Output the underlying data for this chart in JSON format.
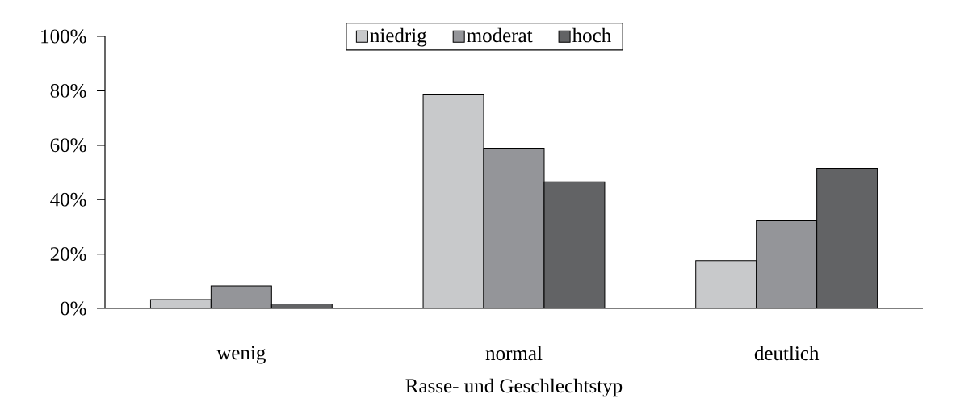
{
  "chart_data": {
    "type": "bar",
    "xlabel": "Rasse- und Geschlechtstyp",
    "categories": [
      "wenig",
      "normal",
      "deutlich"
    ],
    "series": [
      {
        "name": "niedrig",
        "color": "#c8c9cb",
        "values": [
          3.3,
          78.5,
          17.6
        ]
      },
      {
        "name": "moderat",
        "color": "#949599",
        "values": [
          8.3,
          58.9,
          32.2
        ]
      },
      {
        "name": "hoch",
        "color": "#626365",
        "values": [
          1.6,
          46.5,
          51.5
        ]
      }
    ],
    "ylim": [
      0,
      100
    ],
    "yticks": [
      {
        "value": 0,
        "label": "0%"
      },
      {
        "value": 20,
        "label": "20%"
      },
      {
        "value": 40,
        "label": "40%"
      },
      {
        "value": 60,
        "label": "60%"
      },
      {
        "value": 80,
        "label": "80%"
      },
      {
        "value": 100,
        "label": "100%"
      }
    ],
    "grid": false,
    "legend": "top"
  }
}
